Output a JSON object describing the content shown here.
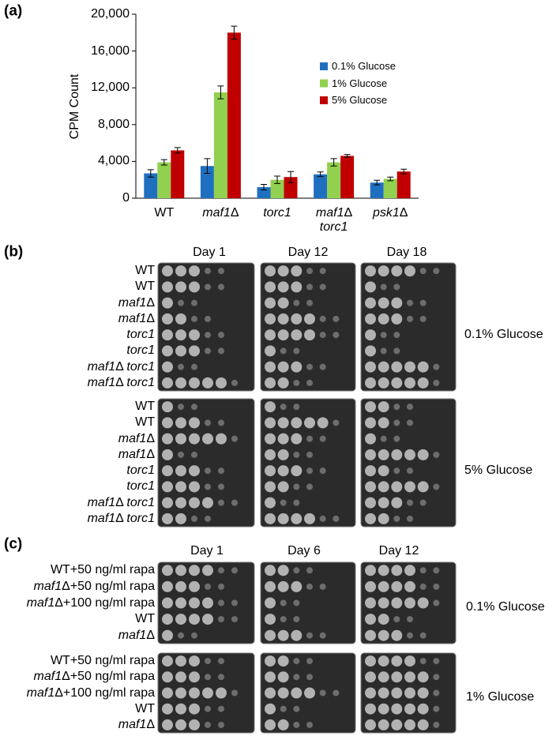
{
  "chart_data": {
    "type": "bar",
    "y_label": "CPM Count",
    "categories": [
      "WT",
      "maf1Δ",
      "torc1",
      "maf1Δ torc1",
      "psk1Δ"
    ],
    "series": [
      {
        "name": "0.1% Glucose",
        "color": "#1f6fc0",
        "values": [
          2700,
          3500,
          1200,
          2600,
          1700
        ],
        "errors": [
          400,
          800,
          300,
          250,
          250
        ]
      },
      {
        "name": "1% Glucose",
        "color": "#92d050",
        "values": [
          3900,
          11500,
          2000,
          3900,
          2100
        ],
        "errors": [
          300,
          700,
          400,
          400,
          200
        ]
      },
      {
        "name": "5% Glucose",
        "color": "#c00000",
        "values": [
          5200,
          18000,
          2300,
          4600,
          2900
        ],
        "errors": [
          300,
          700,
          600,
          150,
          250
        ]
      }
    ],
    "ylim": [
      0,
      20000
    ],
    "yticks": [
      0,
      {
        "value": 4000,
        "label": "4,000"
      },
      {
        "value": 8000,
        "label": "8,000"
      },
      {
        "value": 12000,
        "label": "12,000"
      },
      {
        "value": 16000,
        "label": "16,000"
      },
      {
        "value": 20000,
        "label": "20,000"
      }
    ],
    "grid": false
  },
  "panel_labels": [
    "(a)",
    "(b)",
    "(c)"
  ],
  "panel_b": {
    "days": [
      "Day 1",
      "Day 12",
      "Day 18"
    ],
    "strains": [
      "WT",
      "WT",
      "maf1Δ",
      "maf1Δ",
      "torc1",
      "torc1",
      "maf1Δ torc1",
      "maf1Δ torc1"
    ],
    "conditions": [
      "0.1% Glucose",
      "5% Glucose"
    ]
  },
  "panel_c": {
    "days": [
      "Day 1",
      "Day 6",
      "Day 12"
    ],
    "strains": [
      "WT+50 ng/ml rapa",
      "maf1Δ+50 ng/ml rapa",
      "maf1Δ+100 ng/ml rapa",
      "WT",
      "maf1Δ"
    ],
    "conditions": [
      "0.1% Glucose",
      "1% Glucose"
    ]
  }
}
